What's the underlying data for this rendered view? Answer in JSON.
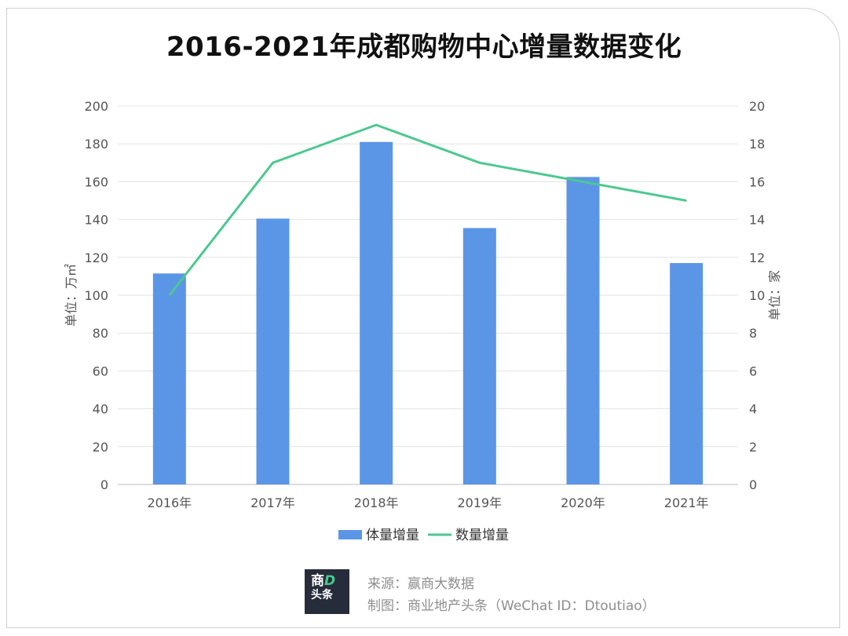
{
  "title": "2016-2021年成都购物中心增量数据变化",
  "chart_data": {
    "type": "bar+line",
    "title": "2016-2021年成都购物中心增量数据变化",
    "categories": [
      "2016年",
      "2017年",
      "2018年",
      "2019年",
      "2020年",
      "2021年"
    ],
    "series": [
      {
        "name": "体量增量",
        "type": "bar",
        "axis": "left",
        "color": "#5b95e5",
        "values": [
          111.5,
          140.5,
          181,
          135.5,
          162.5,
          117
        ]
      },
      {
        "name": "数量增量",
        "type": "line",
        "axis": "right",
        "color": "#4cc890",
        "values": [
          10,
          17,
          19,
          17,
          16,
          15
        ]
      }
    ],
    "y_left": {
      "label": "单位：万㎡",
      "min": 0,
      "max": 200,
      "step": 20
    },
    "y_right": {
      "label": "单位：家",
      "min": 0,
      "max": 20,
      "step": 2
    },
    "grid": true,
    "legend_position": "bottom"
  },
  "footer": {
    "source": "来源：赢商大数据",
    "made_by": "制图：商业地产头条（WeChat ID：Dtoutiao）",
    "logo_line1": "商",
    "logo_line1_mark": "D",
    "logo_line2": "头条"
  }
}
